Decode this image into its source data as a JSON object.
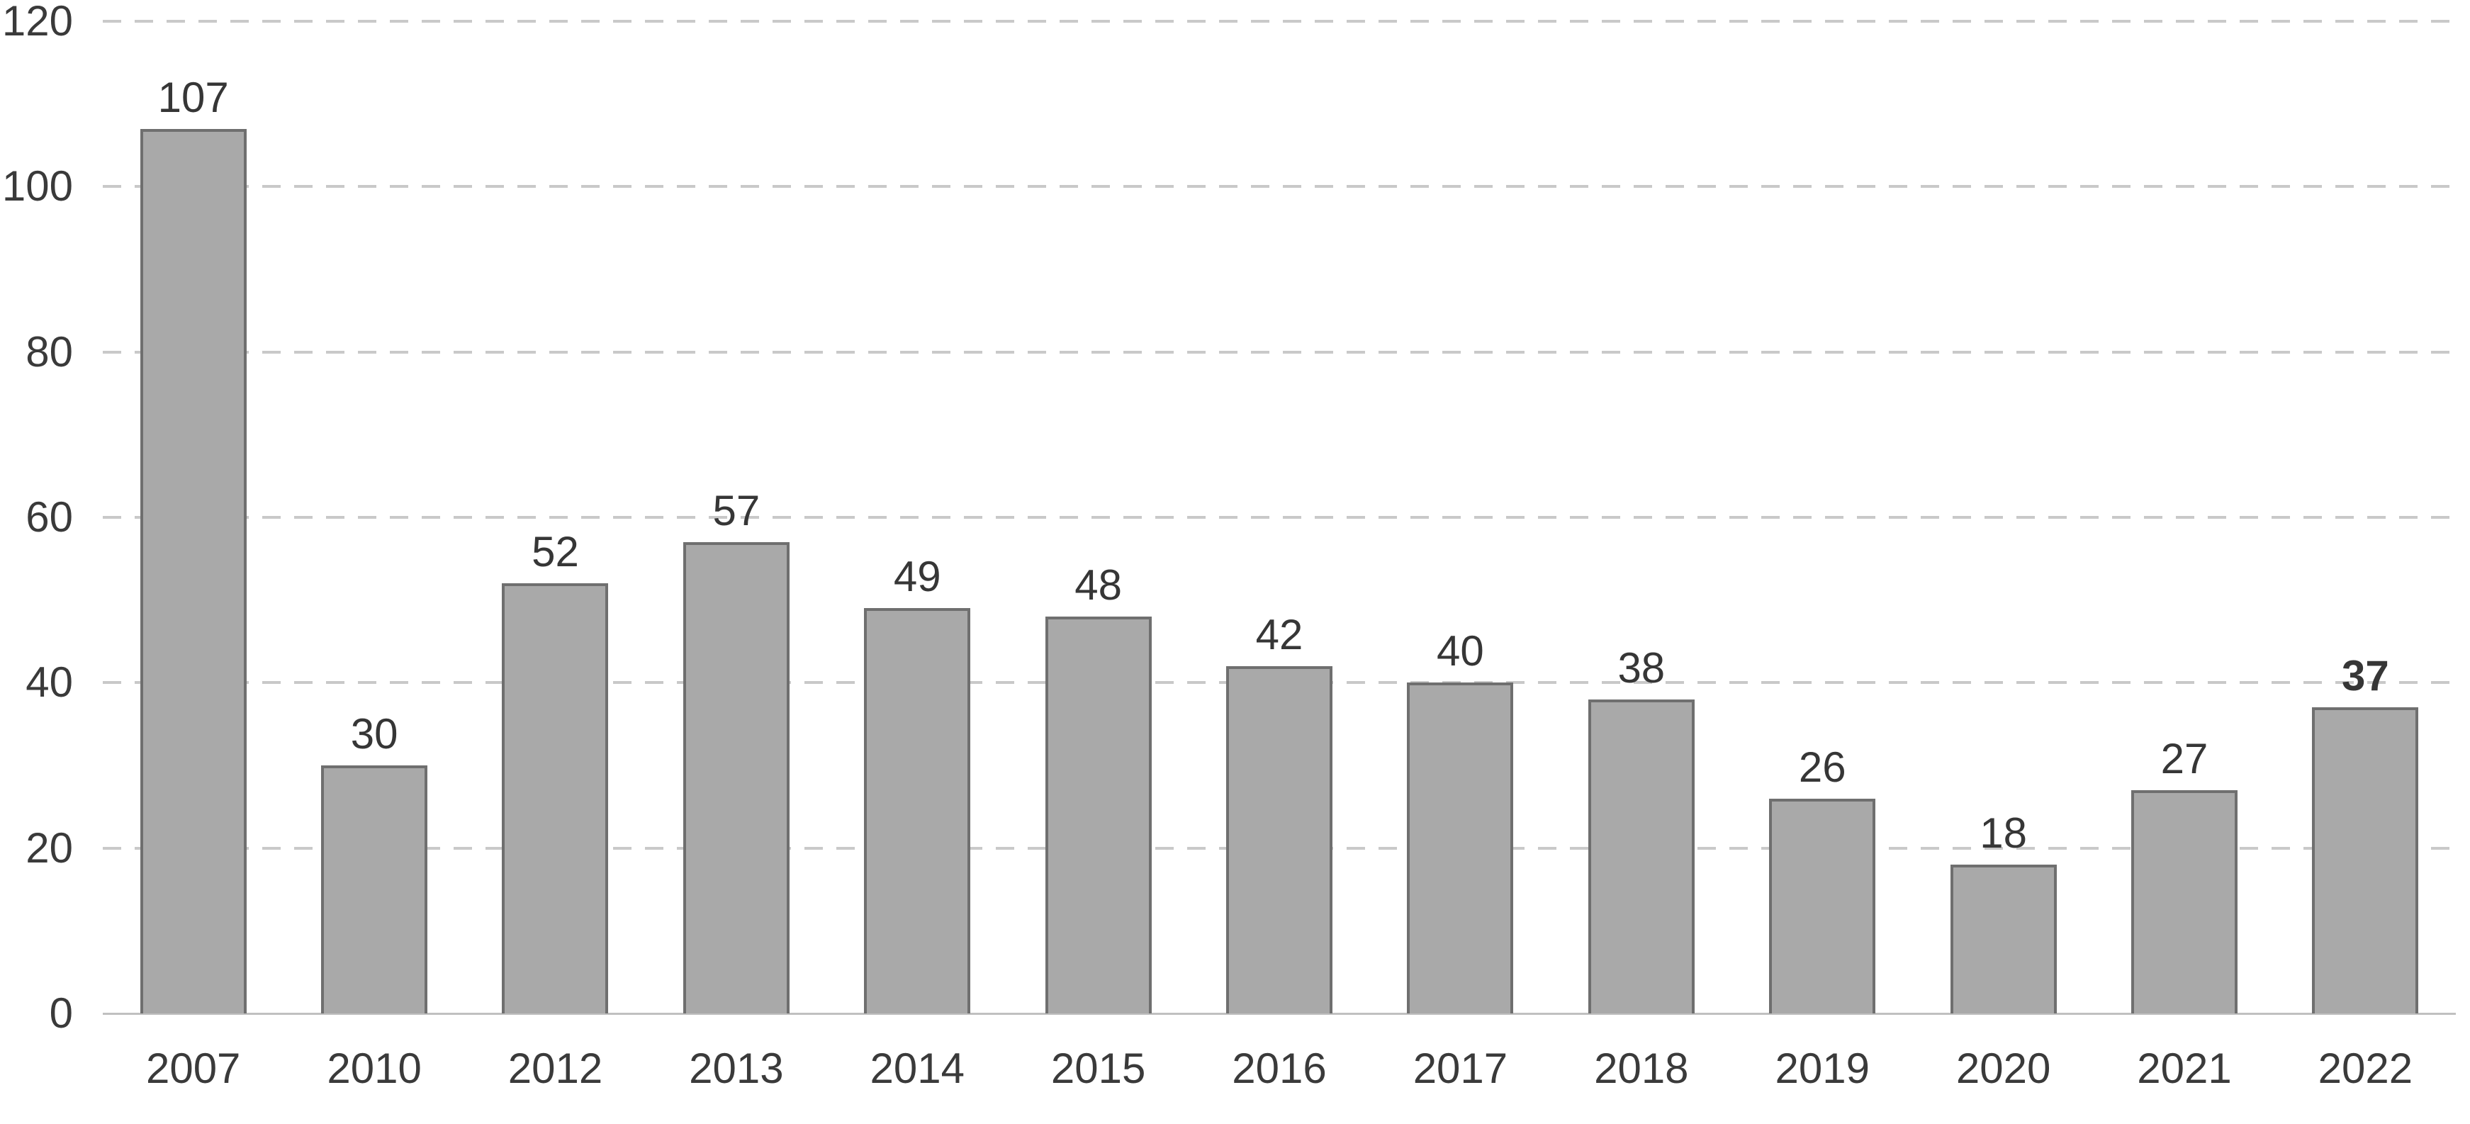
{
  "chart_data": {
    "type": "bar",
    "categories": [
      "2007",
      "2010",
      "2012",
      "2013",
      "2014",
      "2015",
      "2016",
      "2017",
      "2018",
      "2019",
      "2020",
      "2021",
      "2022"
    ],
    "values": [
      107,
      30,
      52,
      57,
      49,
      48,
      42,
      40,
      38,
      26,
      18,
      27,
      37
    ],
    "bold_value_index": 12,
    "title": "",
    "xlabel": "",
    "ylabel": "",
    "ylim": [
      0,
      120
    ],
    "yticks": [
      0,
      20,
      40,
      60,
      80,
      100,
      120
    ],
    "grid": "dashed-horizontal",
    "legend": "none",
    "colors": {
      "bar_fill": "#a9a9a9",
      "bar_border": "#6f6f6f",
      "gridline": "#c9c9c9",
      "axis_line": "#c0c0c0",
      "label_text": "#3a3a3a"
    }
  }
}
